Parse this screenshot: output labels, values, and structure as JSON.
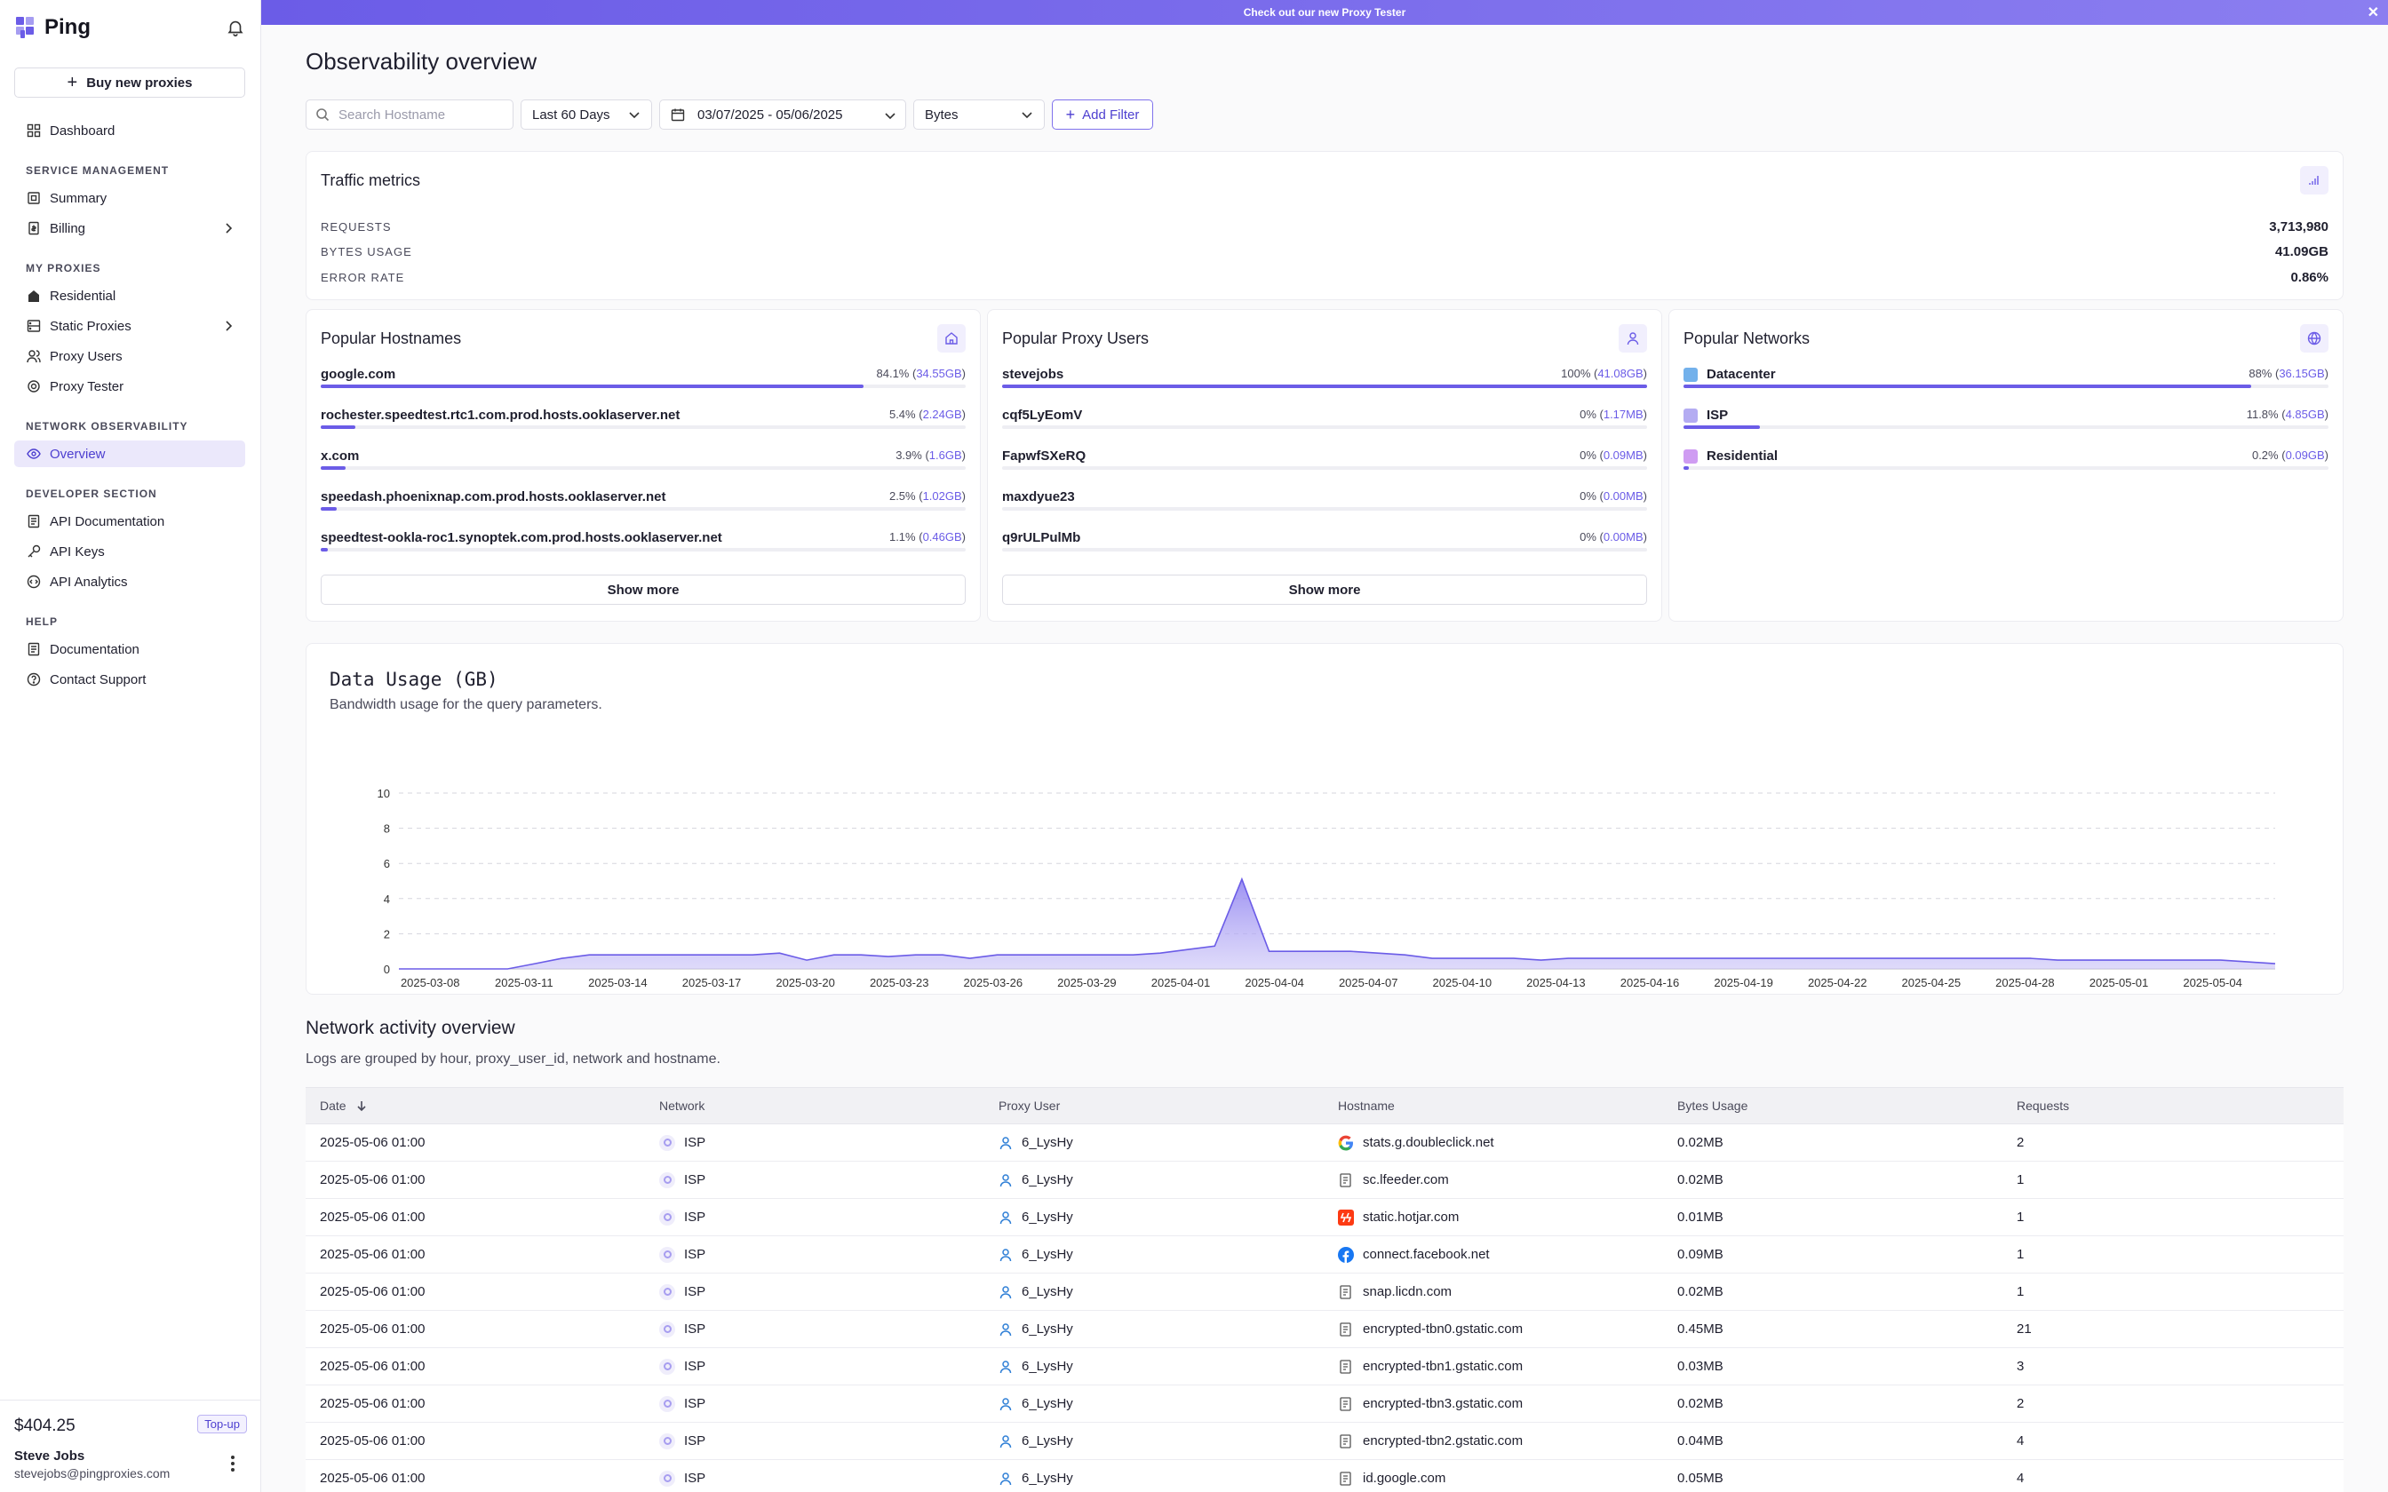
{
  "app": {
    "name": "Ping"
  },
  "sidebar": {
    "buy_label": "Buy new proxies",
    "dashboard": "Dashboard",
    "sections": [
      {
        "title": "SERVICE MANAGEMENT",
        "items": [
          "Summary",
          "Billing"
        ]
      },
      {
        "title": "MY PROXIES",
        "items": [
          "Residential",
          "Static Proxies",
          "Proxy Users",
          "Proxy Tester"
        ]
      },
      {
        "title": "NETWORK OBSERVABILITY",
        "items": [
          "Overview"
        ]
      },
      {
        "title": "DEVELOPER SECTION",
        "items": [
          "API Documentation",
          "API Keys",
          "API Analytics"
        ]
      },
      {
        "title": "HELP",
        "items": [
          "Documentation",
          "Contact Support"
        ]
      }
    ],
    "balance": "$404.25",
    "topup_label": "Top-up",
    "user_name": "Steve Jobs",
    "user_email": "stevejobs@pingproxies.com"
  },
  "banner": {
    "text": "Check out our new Proxy Tester",
    "close": "✕"
  },
  "page": {
    "title": "Observability overview"
  },
  "filters": {
    "search_placeholder": "Search Hostname",
    "range": "Last 60 Days",
    "dates": "03/07/2025 - 05/06/2025",
    "unit": "Bytes",
    "add_filter": "Add Filter"
  },
  "traffic": {
    "title": "Traffic metrics",
    "rows": [
      {
        "label": "REQUESTS",
        "value": "3,713,980"
      },
      {
        "label": "BYTES USAGE",
        "value": "41.09GB"
      },
      {
        "label": "ERROR RATE",
        "value": "0.86%"
      }
    ]
  },
  "hostnames": {
    "title": "Popular Hostnames",
    "show_more": "Show more",
    "rows": [
      {
        "name": "google.com",
        "pct": "84.1%",
        "size": "34.55GB",
        "fill": 0.841
      },
      {
        "name": "rochester.speedtest.rtc1.com.prod.hosts.ooklaserver.net",
        "pct": "5.4%",
        "size": "2.24GB",
        "fill": 0.054
      },
      {
        "name": "x.com",
        "pct": "3.9%",
        "size": "1.6GB",
        "fill": 0.039
      },
      {
        "name": "speedash.phoenixnap.com.prod.hosts.ooklaserver.net",
        "pct": "2.5%",
        "size": "1.02GB",
        "fill": 0.025
      },
      {
        "name": "speedtest-ookla-roc1.synoptek.com.prod.hosts.ooklaserver.net",
        "pct": "1.1%",
        "size": "0.46GB",
        "fill": 0.011
      }
    ]
  },
  "proxy_users": {
    "title": "Popular Proxy Users",
    "show_more": "Show more",
    "rows": [
      {
        "name": "stevejobs",
        "pct": "100%",
        "size": "41.08GB",
        "fill": 1.0
      },
      {
        "name": "cqf5LyEomV",
        "pct": "0%",
        "size": "1.17MB",
        "fill": 0
      },
      {
        "name": "FapwfSXeRQ",
        "pct": "0%",
        "size": "0.09MB",
        "fill": 0
      },
      {
        "name": "maxdyue23",
        "pct": "0%",
        "size": "0.00MB",
        "fill": 0
      },
      {
        "name": "q9rULPulMb",
        "pct": "0%",
        "size": "0.00MB",
        "fill": 0
      }
    ]
  },
  "networks": {
    "title": "Popular Networks",
    "rows": [
      {
        "name": "Datacenter",
        "pct": "88%",
        "size": "36.15GB",
        "fill": 0.88,
        "icon_color": "#5ba3e8"
      },
      {
        "name": "ISP",
        "pct": "11.8%",
        "size": "4.85GB",
        "fill": 0.118,
        "icon_color": "#a79df0"
      },
      {
        "name": "Residential",
        "pct": "0.2%",
        "size": "0.09GB",
        "fill": 0.002,
        "icon_color": "#c78bf0"
      }
    ]
  },
  "chart_data": {
    "type": "area",
    "title": "Data Usage (GB)",
    "subtitle": "Bandwidth usage for the query parameters.",
    "ylim": [
      0,
      10
    ],
    "yticks": [
      0,
      2,
      4,
      6,
      8,
      10
    ],
    "grid": true,
    "x_tick_labels": [
      "2025-03-08",
      "2025-03-11",
      "2025-03-14",
      "2025-03-17",
      "2025-03-20",
      "2025-03-23",
      "2025-03-26",
      "2025-03-29",
      "2025-04-01",
      "2025-04-04",
      "2025-04-07",
      "2025-04-10",
      "2025-04-13",
      "2025-04-16",
      "2025-04-19",
      "2025-04-22",
      "2025-04-25",
      "2025-04-28",
      "2025-05-01",
      "2025-05-04"
    ],
    "x_start": "2025-03-07",
    "x_end": "2025-05-06",
    "values": [
      0,
      0,
      0,
      0,
      0,
      0.3,
      0.6,
      0.8,
      0.8,
      0.8,
      0.8,
      0.8,
      0.8,
      0.8,
      0.9,
      0.5,
      0.8,
      0.8,
      0.7,
      0.8,
      0.8,
      0.6,
      0.8,
      0.8,
      0.8,
      0.8,
      0.8,
      0.8,
      0.9,
      1.1,
      1.3,
      5.1,
      1.0,
      1.0,
      1.0,
      1.0,
      0.9,
      0.8,
      0.6,
      0.6,
      0.6,
      0.6,
      0.5,
      0.6,
      0.6,
      0.6,
      0.6,
      0.6,
      0.6,
      0.6,
      0.6,
      0.6,
      0.6,
      0.6,
      0.6,
      0.6,
      0.6,
      0.6,
      0.6,
      0.6,
      0.6,
      0.5,
      0.5,
      0.5,
      0.5,
      0.5,
      0.5,
      0.5,
      0.4,
      0.3
    ]
  },
  "activity": {
    "title": "Network activity overview",
    "subtitle": "Logs are grouped by hour, proxy_user_id, network and hostname.",
    "columns": [
      "Date",
      "Network",
      "Proxy User",
      "Hostname",
      "Bytes Usage",
      "Requests"
    ],
    "sort_icon": "arrow-down-icon",
    "rows": [
      {
        "date": "2025-05-06 01:00",
        "network": "ISP",
        "user": "6_LysHy",
        "host": "stats.g.doubleclick.net",
        "host_icon": "google",
        "bytes": "0.02MB",
        "req": "2"
      },
      {
        "date": "2025-05-06 01:00",
        "network": "ISP",
        "user": "6_LysHy",
        "host": "sc.lfeeder.com",
        "host_icon": "page",
        "bytes": "0.02MB",
        "req": "1"
      },
      {
        "date": "2025-05-06 01:00",
        "network": "ISP",
        "user": "6_LysHy",
        "host": "static.hotjar.com",
        "host_icon": "hotjar",
        "bytes": "0.01MB",
        "req": "1"
      },
      {
        "date": "2025-05-06 01:00",
        "network": "ISP",
        "user": "6_LysHy",
        "host": "connect.facebook.net",
        "host_icon": "facebook",
        "bytes": "0.09MB",
        "req": "1"
      },
      {
        "date": "2025-05-06 01:00",
        "network": "ISP",
        "user": "6_LysHy",
        "host": "snap.licdn.com",
        "host_icon": "page",
        "bytes": "0.02MB",
        "req": "1"
      },
      {
        "date": "2025-05-06 01:00",
        "network": "ISP",
        "user": "6_LysHy",
        "host": "encrypted-tbn0.gstatic.com",
        "host_icon": "page",
        "bytes": "0.45MB",
        "req": "21"
      },
      {
        "date": "2025-05-06 01:00",
        "network": "ISP",
        "user": "6_LysHy",
        "host": "encrypted-tbn1.gstatic.com",
        "host_icon": "page",
        "bytes": "0.03MB",
        "req": "3"
      },
      {
        "date": "2025-05-06 01:00",
        "network": "ISP",
        "user": "6_LysHy",
        "host": "encrypted-tbn3.gstatic.com",
        "host_icon": "page",
        "bytes": "0.02MB",
        "req": "2"
      },
      {
        "date": "2025-05-06 01:00",
        "network": "ISP",
        "user": "6_LysHy",
        "host": "encrypted-tbn2.gstatic.com",
        "host_icon": "page",
        "bytes": "0.04MB",
        "req": "4"
      },
      {
        "date": "2025-05-06 01:00",
        "network": "ISP",
        "user": "6_LysHy",
        "host": "id.google.com",
        "host_icon": "page",
        "bytes": "0.05MB",
        "req": "4"
      }
    ]
  },
  "colors": {
    "accent": "#6b5ce7",
    "accent_light": "#ebe8fb"
  }
}
